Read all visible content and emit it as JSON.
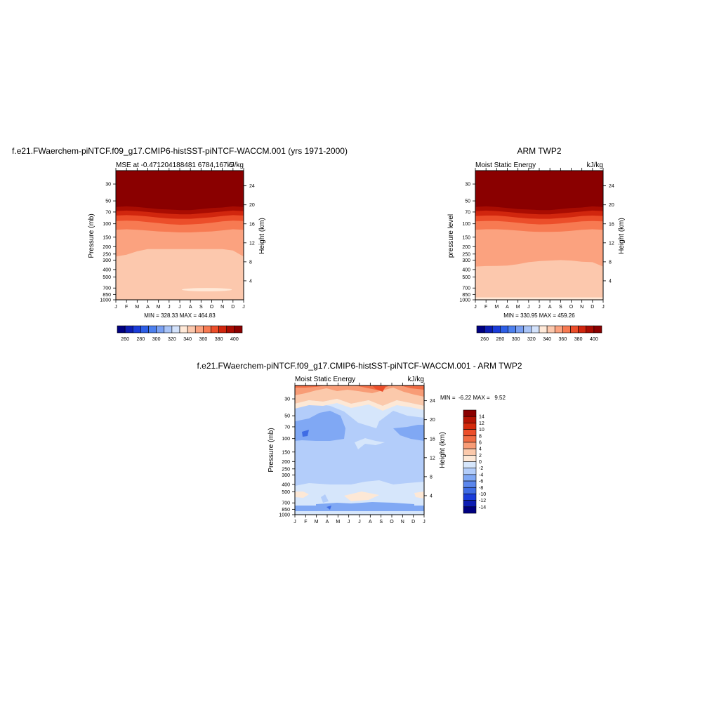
{
  "chart_data": [
    {
      "type": "heatmap",
      "panel": "top-left",
      "title": "f.e21.FWaerchem-piNTCF.f09_g17.CMIP6-histSST-piNTCF-WACCM.001 (yrs 1971-2000)",
      "left_subtitle": "MSE at -0.471204188481 6784,167.5",
      "right_subtitle": "kJ/kg",
      "ylabel": "Pressure (mb)",
      "ylabel_right": "Height (km)",
      "x_tick_labels": [
        "J",
        "F",
        "M",
        "A",
        "M",
        "J",
        "J",
        "A",
        "S",
        "O",
        "N",
        "D",
        "J"
      ],
      "y_ticks": [
        30,
        50,
        70,
        100,
        150,
        200,
        250,
        300,
        400,
        500,
        700,
        850,
        1000
      ],
      "height_ticks": [
        4,
        8,
        12,
        16,
        20,
        24
      ],
      "ylim": [
        1000,
        20
      ],
      "stats": "MIN = 328.33 MAX = 464.83",
      "legend": "bottom",
      "colorbar_labels": [
        "260",
        "280",
        "300",
        "320",
        "340",
        "360",
        "380",
        "400"
      ],
      "boundaries": [
        {
          "contour": 340,
          "p": [
            270,
            255,
            230,
            215,
            215,
            215,
            215,
            215,
            215,
            215,
            215,
            225,
            270
          ]
        },
        {
          "contour": 350,
          "p": [
            120,
            118,
            120,
            123,
            126,
            128,
            130,
            130,
            128,
            126,
            122,
            118,
            120
          ]
        },
        {
          "contour": 360,
          "p": [
            92,
            91,
            92,
            95,
            98,
            101,
            103,
            102,
            100,
            97,
            93,
            91,
            92
          ]
        },
        {
          "contour": 370,
          "p": [
            78,
            77,
            78,
            80,
            83,
            85,
            86,
            86,
            84,
            82,
            79,
            77,
            78
          ]
        },
        {
          "contour": 380,
          "p": [
            68,
            67,
            68,
            70,
            72,
            74,
            75,
            75,
            73,
            71,
            69,
            67,
            68
          ]
        },
        {
          "contour": 390,
          "p": [
            60,
            59,
            60,
            62,
            64,
            65,
            66,
            66,
            64,
            62,
            61,
            59,
            60
          ]
        },
        {
          "contour": 400,
          "p": [
            53,
            52,
            53,
            55,
            57,
            58,
            59,
            59,
            57,
            55,
            54,
            52,
            53
          ]
        }
      ],
      "blob": {
        "contour": 330,
        "x_range": [
          6.2,
          10.9
        ],
        "p_center": 735,
        "p_range": [
          700,
          775
        ]
      }
    },
    {
      "type": "heatmap",
      "panel": "top-right",
      "title": "ARM TWP2",
      "left_subtitle": "Moist Static Energy",
      "right_subtitle": "kJ/kg",
      "ylabel": "pressure level",
      "ylabel_right": "Height (km)",
      "x_tick_labels": [
        "J",
        "F",
        "M",
        "A",
        "M",
        "J",
        "J",
        "A",
        "S",
        "O",
        "N",
        "D",
        "J"
      ],
      "y_ticks": [
        30,
        50,
        70,
        100,
        150,
        200,
        250,
        300,
        400,
        500,
        700,
        850,
        1000
      ],
      "height_ticks": [
        4,
        8,
        12,
        16,
        20,
        24
      ],
      "ylim": [
        1000,
        20
      ],
      "stats": "MIN = 330.95 MAX = 459.26",
      "legend": "bottom",
      "colorbar_labels": [
        "260",
        "280",
        "300",
        "320",
        "340",
        "360",
        "380",
        "400"
      ],
      "boundaries": [
        {
          "contour": 340,
          "p": [
            365,
            360,
            358,
            355,
            340,
            320,
            310,
            305,
            300,
            305,
            315,
            320,
            365
          ]
        },
        {
          "contour": 350,
          "p": [
            120,
            118,
            118,
            120,
            123,
            126,
            128,
            128,
            127,
            124,
            120,
            118,
            120
          ]
        },
        {
          "contour": 360,
          "p": [
            93,
            92,
            92,
            94,
            97,
            100,
            102,
            101,
            99,
            96,
            93,
            92,
            93
          ]
        },
        {
          "contour": 370,
          "p": [
            79,
            78,
            78,
            80,
            83,
            85,
            86,
            86,
            84,
            82,
            79,
            78,
            79
          ]
        },
        {
          "contour": 380,
          "p": [
            68,
            67,
            68,
            70,
            72,
            74,
            75,
            75,
            73,
            71,
            69,
            67,
            68
          ]
        },
        {
          "contour": 390,
          "p": [
            60,
            59,
            60,
            62,
            64,
            65,
            66,
            66,
            64,
            62,
            61,
            59,
            60
          ]
        },
        {
          "contour": 400,
          "p": [
            53,
            52,
            53,
            55,
            57,
            58,
            59,
            59,
            57,
            55,
            54,
            52,
            53
          ]
        }
      ],
      "surface_band": {
        "contour": 330,
        "p_top": 930
      }
    },
    {
      "type": "heatmap",
      "panel": "bottom-center",
      "title": "f.e21.FWaerchem-piNTCF.f09_g17.CMIP6-histSST-piNTCF-WACCM.001 - ARM TWP2",
      "left_subtitle": "Moist Static Energy",
      "right_subtitle": "kJ/kg",
      "ylabel": "Pressure (mb)",
      "ylabel_right": "Height (km)",
      "x_tick_labels": [
        "J",
        "F",
        "M",
        "A",
        "M",
        "J",
        "J",
        "A",
        "S",
        "O",
        "N",
        "D",
        "J"
      ],
      "y_ticks": [
        30,
        50,
        70,
        100,
        150,
        200,
        250,
        300,
        400,
        500,
        700,
        850,
        1000
      ],
      "height_ticks": [
        4,
        8,
        12,
        16,
        20,
        24
      ],
      "ylim": [
        1000,
        20
      ],
      "stats": "MIN =  -6.22 MAX =   9.52",
      "legend": "right",
      "colorbar_labels": [
        "14",
        "12",
        "10",
        "8",
        "6",
        "4",
        "2",
        "0",
        "-2",
        "-4",
        "-6",
        "-8",
        "-10",
        "-12",
        "-14"
      ]
    }
  ],
  "colors": {
    "scale": [
      "#000080",
      "#0d1db3",
      "#1a3cd9",
      "#2e5fe6",
      "#4d80ee",
      "#7aa0f2",
      "#a9c4f7",
      "#d3e2fb",
      "#ffe9d8",
      "#fcc8ad",
      "#fba27f",
      "#f77a52",
      "#ec4e2a",
      "#d1260e",
      "#a90c02",
      "#8a0000"
    ],
    "neg2to0": "#d6e6fb",
    "neg4to2": "#b3cdfa",
    "neg6to4": "#80a8f4",
    "neg8to6": "#3f6ce4",
    "pos0to2": "#fde8d6",
    "pos2to4": "#fbc9ab",
    "pos4to6": "#f89c76",
    "pos6to8": "#f06c44"
  }
}
